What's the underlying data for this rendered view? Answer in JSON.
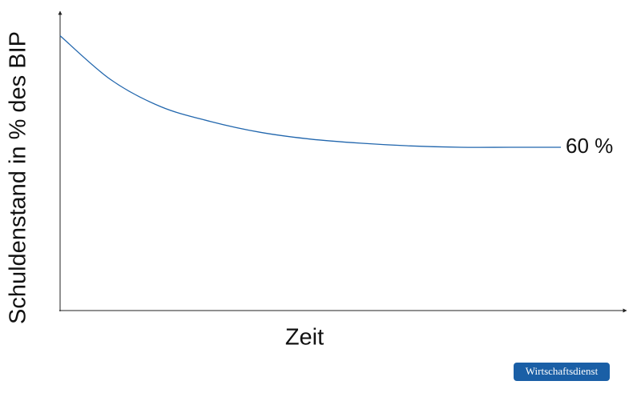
{
  "chart_data": {
    "type": "line",
    "ylabel": "Schuldenstand in % des BIP",
    "xlabel": "Zeit",
    "x": [
      0,
      1,
      2,
      3,
      4,
      5,
      6,
      7,
      8,
      9,
      10
    ],
    "xlim": [
      0,
      11.28
    ],
    "ylim": [
      0,
      110
    ],
    "series": [
      {
        "color": "#2166ad",
        "values": [
          101,
          85,
          75,
          69.5,
          65.5,
          63,
          61.5,
          60.5,
          60,
          60,
          60
        ],
        "value_labels": [
          null,
          null,
          null,
          null,
          null,
          null,
          null,
          null,
          null,
          null,
          "60 %"
        ]
      }
    ],
    "source": "Wirtschaftsdienst",
    "source_color": "#1a5fa6"
  }
}
